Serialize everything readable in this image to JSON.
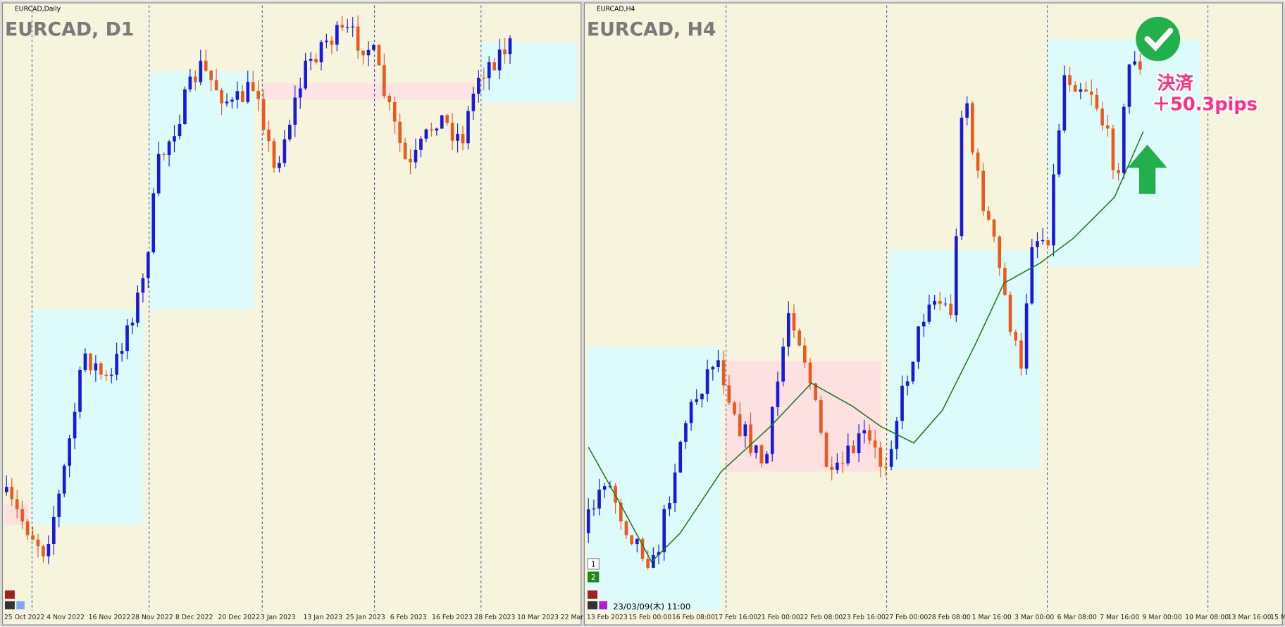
{
  "panels": [
    {
      "small_title": "EURCAD,Daily",
      "title": "EURCAD, D1",
      "dates": [
        "25 Oct 2022",
        "4 Nov 2022",
        "16 Nov 2022",
        "28 Nov 2022",
        "8 Dec 2022",
        "20 Dec 2022",
        "3 Jan 2023",
        "13 Jan 2023",
        "25 Jan 2023",
        "6 Feb 2023",
        "16 Feb 2023",
        "28 Feb 2023",
        "10 Mar 2023",
        "22 Mar"
      ]
    },
    {
      "small_title": "EURCAD,H4",
      "title": "EURCAD, H4",
      "dates": [
        "13 Feb 2023",
        "15 Feb 00:00",
        "16 Feb 08:00",
        "17 Feb 16:00",
        "21 Feb 00:00",
        "22 Feb 08:00",
        "23 Feb 16:00",
        "27 Feb 00:00",
        "28 Feb 08:00",
        "1 Mar 16:00",
        "3 Mar 00:00",
        "6 Mar 08:00",
        "7 Mar 16:00",
        "9 Mar 00:00",
        "10 Mar 08:00",
        "13 Mar 16:00",
        "15 M"
      ],
      "annotation": {
        "label": "決済",
        "pips": "＋50.3pips"
      },
      "timestamp": "23/03/09(木) 11:00",
      "buttons": [
        "1",
        "2"
      ]
    }
  ]
}
